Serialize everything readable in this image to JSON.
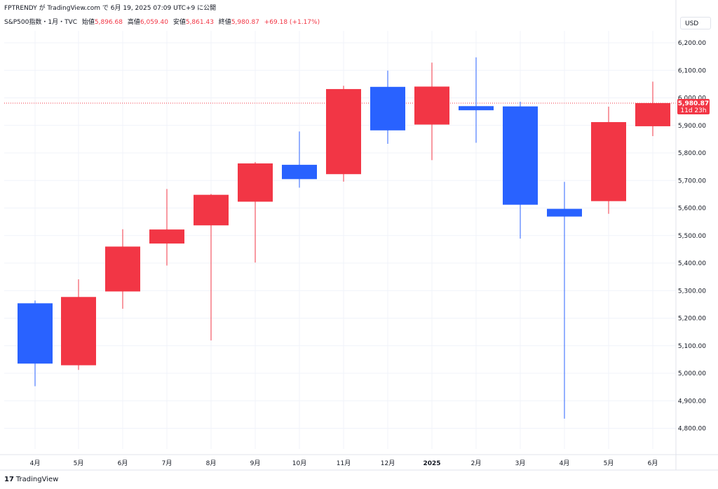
{
  "topline": "FPTRENDY が TradingView.com で 6月 19, 2025 07:09 UTC+9 に公開",
  "legend": {
    "symbol": "S&P500指数・1月・TVC",
    "open_label": "始値",
    "open_value": "5,896.68",
    "high_label": "高値",
    "high_value": "6,059.40",
    "low_label": "安値",
    "low_value": "5,861.43",
    "close_label": "終値",
    "close_value": "5,980.87",
    "change": "+69.18 (+1.17%)"
  },
  "currency": "USD",
  "price_tag": {
    "price": "5,980.87",
    "countdown": "11d 23h"
  },
  "footer": {
    "logo": "17",
    "brand": "TradingView"
  },
  "colors": {
    "up": "#f23645",
    "down": "#2962ff",
    "grid": "#f0f3fa",
    "text": "#131722"
  },
  "chart_data": {
    "type": "candlestick",
    "categories": [
      "4月",
      "5月",
      "6月",
      "7月",
      "8月",
      "9月",
      "10月",
      "11月",
      "12月",
      "2025",
      "2月",
      "3月",
      "4月",
      "5月",
      "6月"
    ],
    "series": [
      {
        "open": 5254,
        "high": 5264,
        "low": 4953,
        "close": 5035
      },
      {
        "open": 5029,
        "high": 5341,
        "low": 5012,
        "close": 5277
      },
      {
        "open": 5297,
        "high": 5523,
        "low": 5234,
        "close": 5460
      },
      {
        "open": 5471,
        "high": 5669,
        "low": 5391,
        "close": 5522
      },
      {
        "open": 5537,
        "high": 5651,
        "low": 5119,
        "close": 5648
      },
      {
        "open": 5623,
        "high": 5767,
        "low": 5402,
        "close": 5762
      },
      {
        "open": 5757,
        "high": 5878,
        "low": 5674,
        "close": 5705
      },
      {
        "open": 5723,
        "high": 6044,
        "low": 5696,
        "close": 6032
      },
      {
        "open": 6040,
        "high": 6099,
        "low": 5833,
        "close": 5882
      },
      {
        "open": 5903,
        "high": 6128,
        "low": 5774,
        "close": 6041
      },
      {
        "open": 5970,
        "high": 6147,
        "low": 5837,
        "close": 5955
      },
      {
        "open": 5969,
        "high": 5986,
        "low": 5489,
        "close": 5612
      },
      {
        "open": 5597,
        "high": 5695,
        "low": 4835,
        "close": 5569
      },
      {
        "open": 5625,
        "high": 5968,
        "low": 5579,
        "close": 5912
      },
      {
        "open": 5897,
        "high": 6059,
        "low": 5861,
        "close": 5981
      }
    ],
    "current_price": 5980.87,
    "yticks": [
      "4,800.00",
      "4,900.00",
      "5,000.00",
      "5,100.00",
      "5,200.00",
      "5,300.00",
      "5,400.00",
      "5,500.00",
      "5,600.00",
      "5,700.00",
      "5,800.00",
      "5,900.00",
      "6,000.00",
      "6,100.00",
      "6,200.00"
    ],
    "ytick_values": [
      4800,
      4900,
      5000,
      5100,
      5200,
      5300,
      5400,
      5500,
      5600,
      5700,
      5800,
      5900,
      6000,
      6100,
      6200
    ],
    "bold_category": "2025",
    "grid": true
  }
}
